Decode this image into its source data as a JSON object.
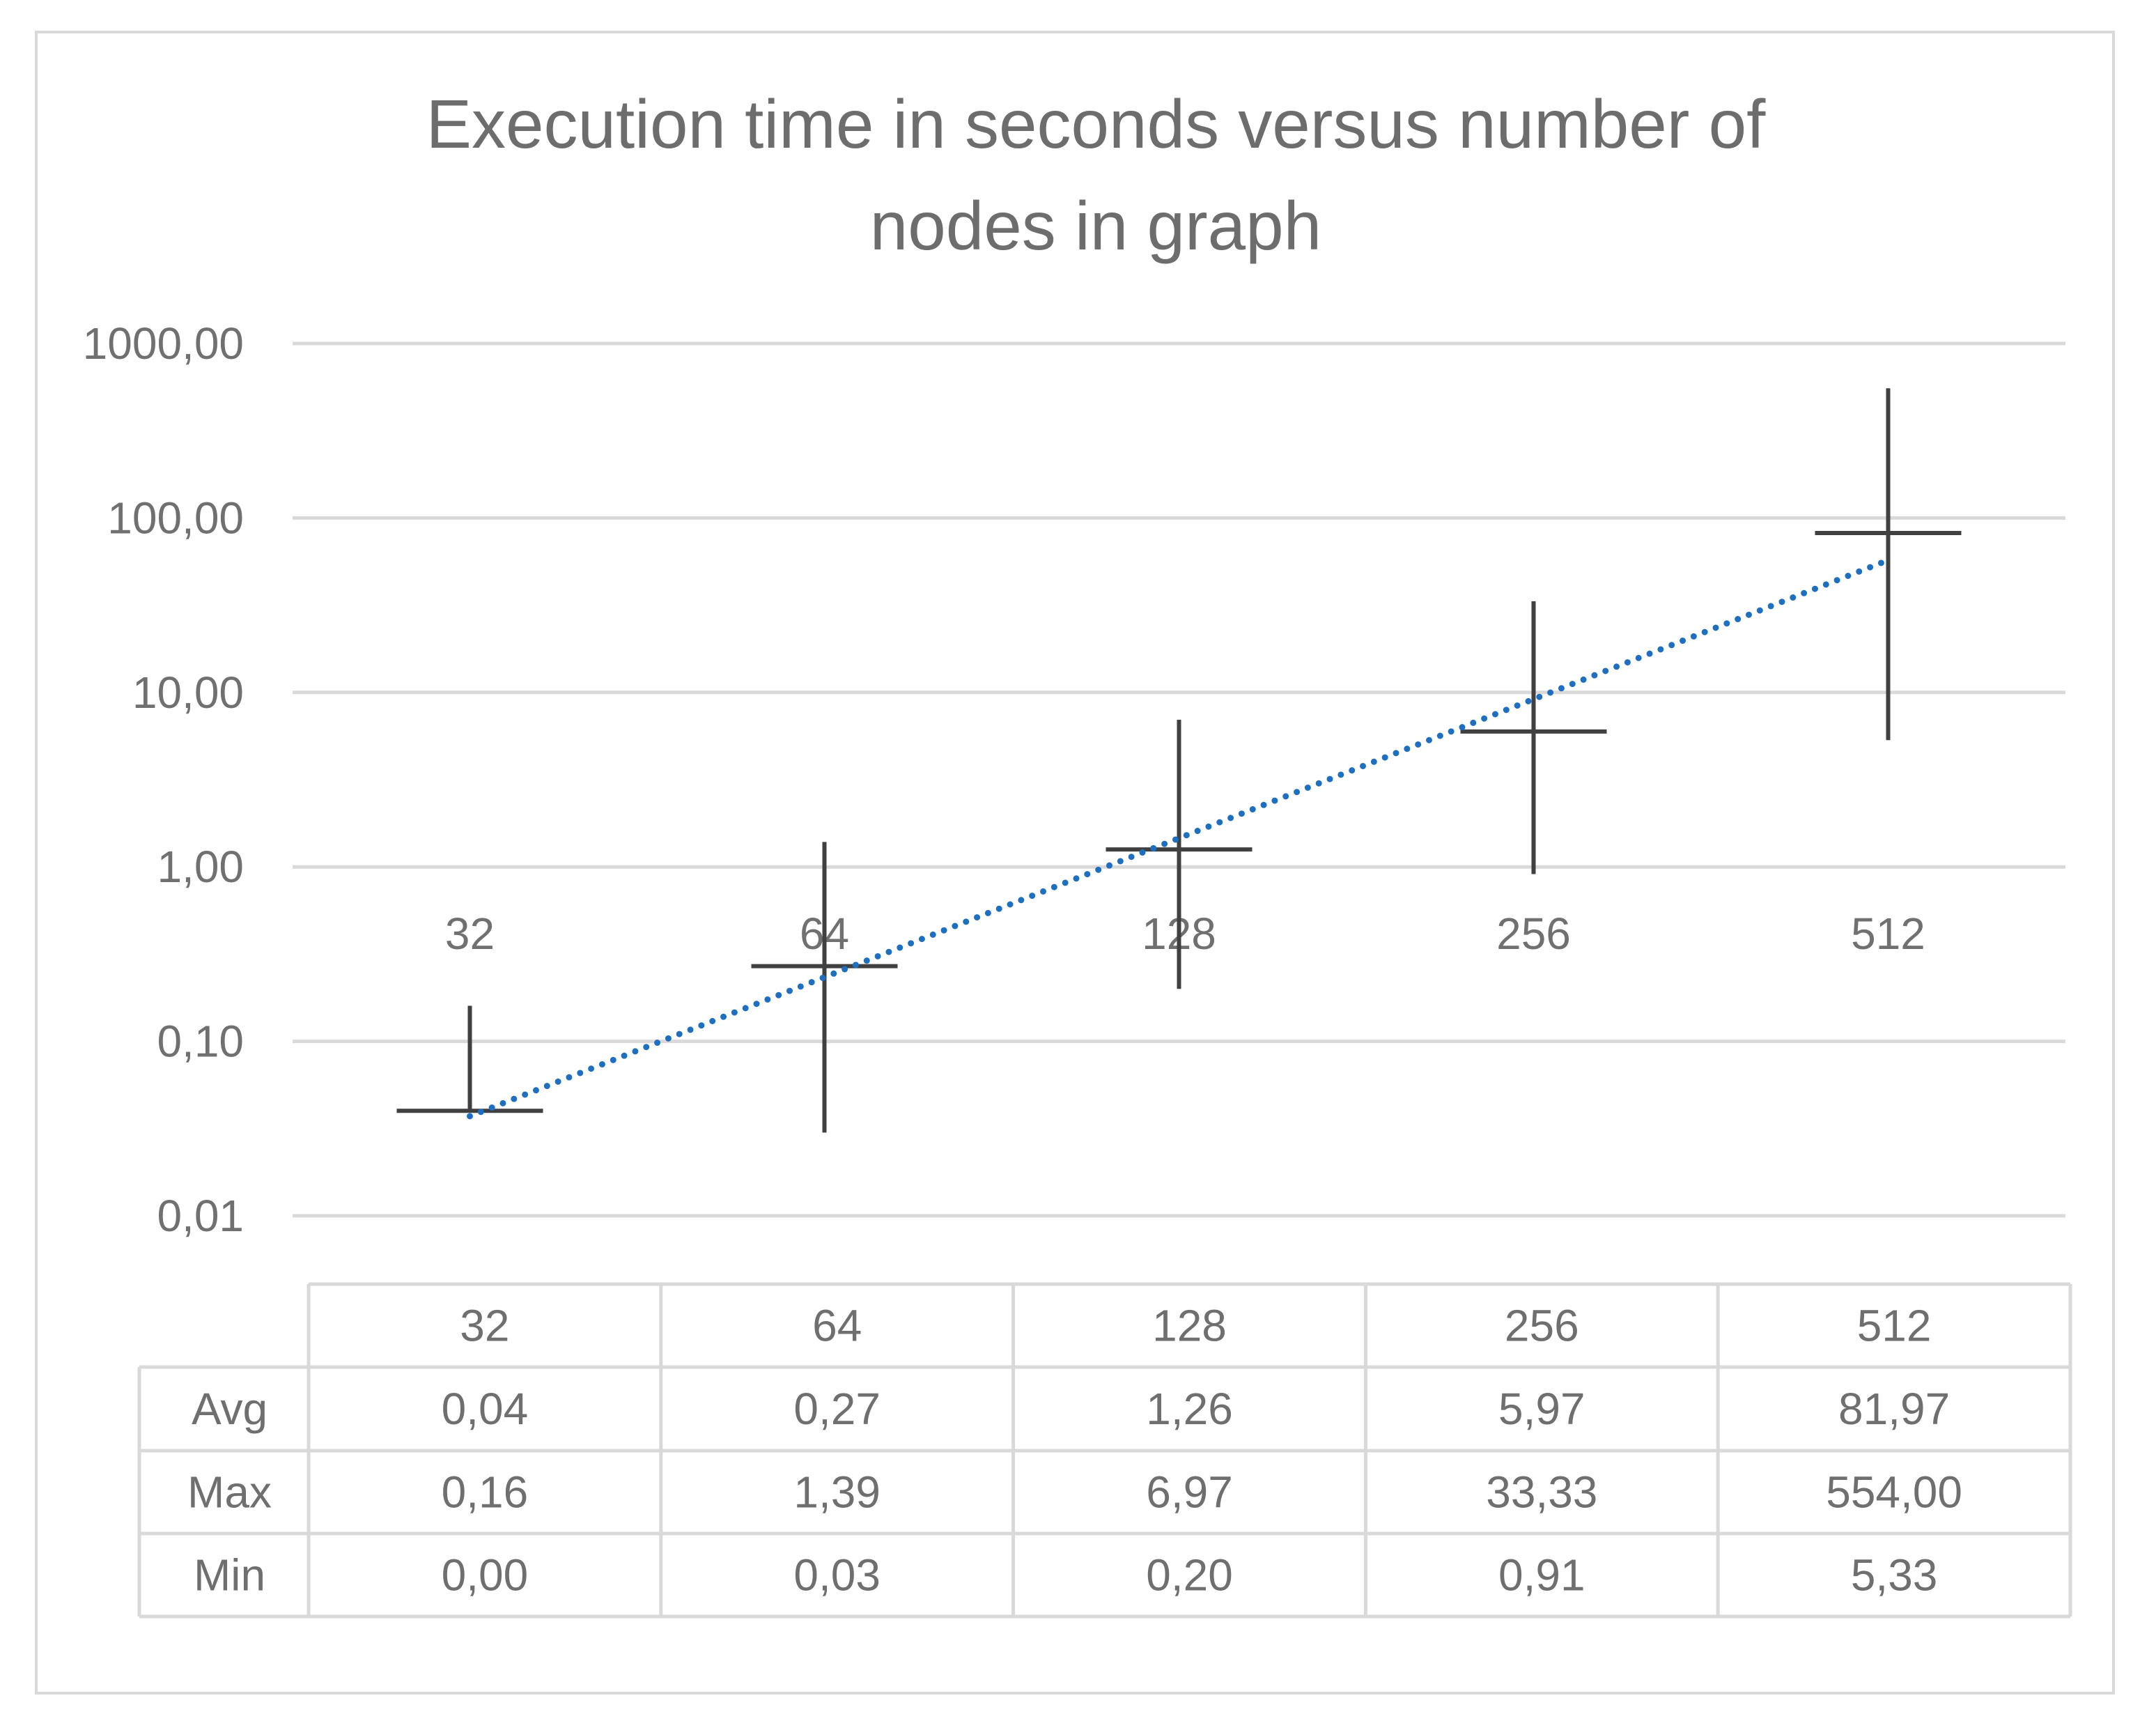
{
  "chart_data": {
    "type": "line",
    "title": "Execution time in seconds versus number of nodes in graph",
    "title_lines": [
      "Execution time in seconds versus number of",
      "nodes in graph"
    ],
    "categories": [
      "32",
      "64",
      "128",
      "256",
      "512"
    ],
    "y_scale": "log",
    "ylim": [
      0.01,
      1000
    ],
    "y_ticks": [
      1000,
      100,
      10,
      1,
      0.1,
      0.01
    ],
    "y_tick_labels": [
      "1000,00",
      "100,00",
      "10,00",
      "1,00",
      "0,10",
      "0,01"
    ],
    "series": [
      {
        "name": "Avg",
        "values": [
          0.04,
          0.27,
          1.26,
          5.97,
          81.97
        ]
      },
      {
        "name": "Max",
        "values": [
          0.16,
          1.39,
          6.97,
          33.33,
          554.0
        ]
      },
      {
        "name": "Min",
        "values": [
          0.0,
          0.03,
          0.2,
          0.91,
          5.33
        ]
      }
    ],
    "trendline": {
      "type": "exponential",
      "style": "dotted",
      "color": "#1f6fc0"
    },
    "grid": true,
    "legend": "data table below chart",
    "data_table": {
      "header": [
        "32",
        "64",
        "128",
        "256",
        "512"
      ],
      "rows": [
        {
          "label": "Avg",
          "cells": [
            "0,04",
            "0,27",
            "1,26",
            "5,97",
            "81,97"
          ]
        },
        {
          "label": "Max",
          "cells": [
            "0,16",
            "1,39",
            "6,97",
            "33,33",
            "554,00"
          ]
        },
        {
          "label": "Min",
          "cells": [
            "0,00",
            "0,03",
            "0,20",
            "0,91",
            "5,33"
          ]
        }
      ]
    }
  },
  "colors": {
    "grid": "#d9d9d9",
    "series_marker": "#404040",
    "trendline": "#1f6fc0",
    "text": "#6d6d6d"
  }
}
